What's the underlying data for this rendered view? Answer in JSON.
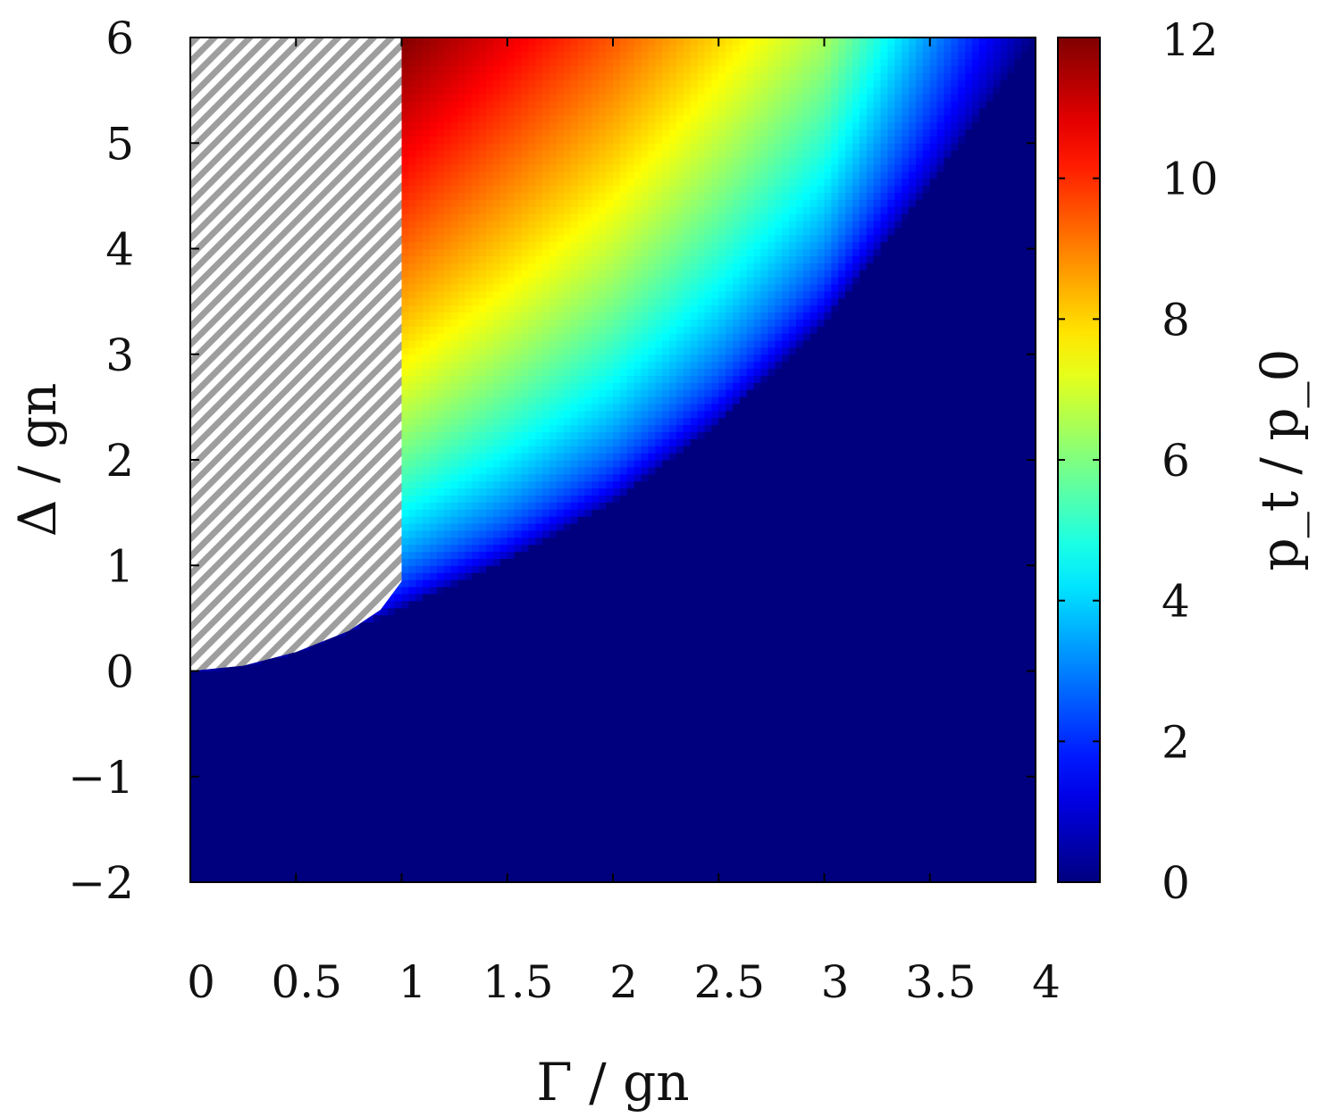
{
  "chart_data": {
    "type": "heatmap",
    "title": "",
    "xlabel": "Γ / gn",
    "ylabel": "Δ / gn",
    "colorbar_label": "p_t / p_0",
    "xlim": [
      0,
      4
    ],
    "ylim": [
      -2,
      6
    ],
    "clim": [
      0,
      12
    ],
    "x_ticks": [
      0,
      0.5,
      1,
      1.5,
      2,
      2.5,
      3,
      3.5,
      4
    ],
    "x_tick_labels": [
      "0",
      "0.5",
      "1",
      "1.5",
      "2",
      "2.5",
      "3",
      "3.5",
      "4"
    ],
    "y_ticks": [
      -2,
      -1,
      0,
      1,
      2,
      3,
      4,
      5,
      6
    ],
    "y_tick_labels": [
      "−2",
      "−1",
      "0",
      "1",
      "2",
      "3",
      "4",
      "5",
      "6"
    ],
    "colorbar_ticks": [
      0,
      2,
      4,
      6,
      8,
      10,
      12
    ],
    "colorbar_tick_labels": [
      "0",
      "2",
      "4",
      "6",
      "8",
      "10",
      "12"
    ],
    "colormap": "jet",
    "zero_region_color": "#00007f",
    "hatched_region_color": "#9e9e9e",
    "boundary_curve": {
      "gamma": [
        0,
        0.25,
        0.5,
        0.75,
        1,
        1.5,
        2,
        2.5,
        3,
        3.5,
        4
      ],
      "delta": [
        0,
        0.05,
        0.18,
        0.38,
        0.6,
        1.05,
        1.6,
        2.35,
        3.3,
        4.6,
        6.0
      ]
    },
    "hatched_region_boundary": {
      "gamma_max": 1.0,
      "gamma": [
        0,
        0.25,
        0.5,
        0.75,
        0.9,
        1.0
      ],
      "delta": [
        0,
        0.05,
        0.18,
        0.38,
        0.58,
        0.85
      ]
    },
    "sample_values": {
      "at_gamma_1_delta_6": 12,
      "at_gamma_2_delta_6": 9.5,
      "at_gamma_3_delta_6": 6.5,
      "at_boundary": 0
    }
  }
}
